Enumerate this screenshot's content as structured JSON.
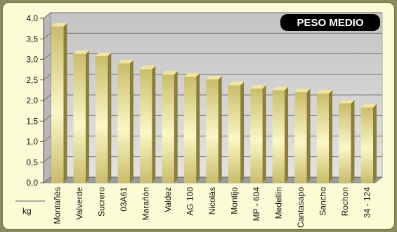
{
  "chart_data": {
    "type": "bar",
    "title": "PESO MEDIO",
    "unit_label": "kg",
    "categories": [
      "Montañés",
      "Valverde",
      "Sucrero",
      "03A61",
      "Marañón",
      "Valdez",
      "AG 100",
      "Nicolás",
      "Montijo",
      "MP - 604",
      "Medellín",
      "Cantasapo",
      "Sancho",
      "Rochon",
      "34 - 124"
    ],
    "values": [
      3.8,
      3.13,
      3.08,
      2.9,
      2.76,
      2.63,
      2.58,
      2.51,
      2.37,
      2.29,
      2.25,
      2.2,
      2.17,
      1.93,
      1.83
    ],
    "y_ticks": [
      "0,0",
      "0,5",
      "1,0",
      "1,5",
      "2,0",
      "2,5",
      "3,0",
      "3,5",
      "4,0"
    ],
    "ylim": [
      0,
      4
    ],
    "grid": true,
    "colors": {
      "bar_light": "#fbf7c6",
      "bar_dark": "#c9bd6a",
      "bar_top": "#f0e6a0",
      "bar_side": "#8a7e3a",
      "wall": "#d6d6d6",
      "title_bg": "#000000"
    }
  }
}
